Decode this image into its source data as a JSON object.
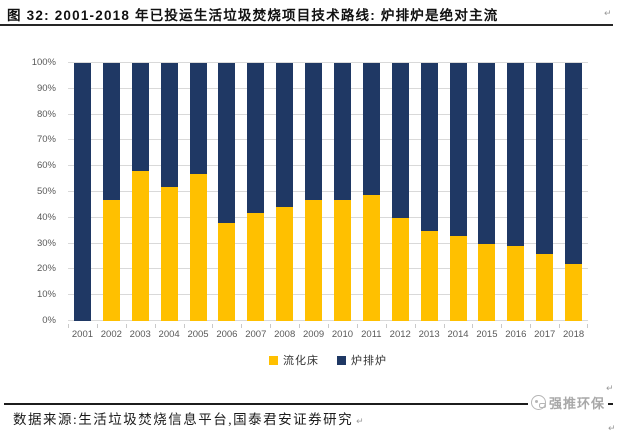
{
  "title": {
    "text": "图 32: 2001-2018 年已投运生活垃圾焚烧项目技术路线: 炉排炉是绝对主流",
    "return_mark": "↵"
  },
  "footer": {
    "source_note": "数据来源:生活垃圾焚烧信息平台,国泰君安证券研究",
    "return_mark": "↵"
  },
  "watermark": {
    "label": "强推环保",
    "icon": "mascot-badge-icon"
  },
  "colors": {
    "fluidized_bed": "#FFC000",
    "grate_furnace": "#1F3864",
    "gridline": "#D9D9D9",
    "axis_text": "#595959",
    "rule": "#262626"
  },
  "chart_data": {
    "type": "bar",
    "stacked": true,
    "stack_total_pct": 100,
    "title": "",
    "xlabel": "",
    "ylabel": "",
    "ylim": [
      0,
      100
    ],
    "yticks": [
      "0%",
      "10%",
      "20%",
      "30%",
      "40%",
      "50%",
      "60%",
      "70%",
      "80%",
      "90%",
      "100%"
    ],
    "grid": true,
    "legend_position": "bottom",
    "categories": [
      "2001",
      "2002",
      "2003",
      "2004",
      "2005",
      "2006",
      "2007",
      "2008",
      "2009",
      "2010",
      "2011",
      "2012",
      "2013",
      "2014",
      "2015",
      "2016",
      "2017",
      "2018"
    ],
    "series": [
      {
        "name": "流化床",
        "color": "#FFC000",
        "values": [
          0,
          47,
          58,
          52,
          57,
          38,
          42,
          44,
          47,
          47,
          49,
          40,
          35,
          33,
          30,
          29,
          26,
          22
        ]
      },
      {
        "name": "炉排炉",
        "color": "#1F3864",
        "values": [
          100,
          53,
          42,
          48,
          43,
          62,
          58,
          56,
          53,
          53,
          51,
          60,
          65,
          67,
          70,
          71,
          74,
          78
        ]
      }
    ]
  }
}
